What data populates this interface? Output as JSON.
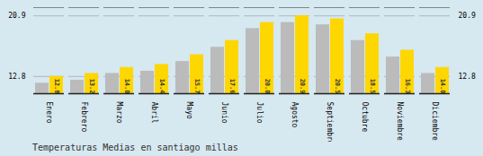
{
  "chart_data": {
    "type": "bar",
    "title": "Temperaturas Medias en santiago millas",
    "categories": [
      "Enero",
      "Febrero",
      "Marzo",
      "Abril",
      "Mayo",
      "Junio",
      "Julio",
      "Agosto",
      "Septiembre",
      "Octubre",
      "Noviembre",
      "Diciembre"
    ],
    "series": [
      {
        "color": "#BBBBBB",
        "values": [
          11.9,
          12.3,
          13.2,
          13.5,
          14.8,
          16.7,
          19.2,
          20.0,
          19.7,
          17.6,
          15.4,
          13.2
        ]
      },
      {
        "color": "#FFD700",
        "values": [
          12.8,
          13.2,
          14.0,
          14.4,
          15.7,
          17.6,
          20.0,
          20.9,
          20.5,
          18.5,
          16.3,
          14.0
        ],
        "value_labels": [
          "12.8",
          "13.2",
          "14.0",
          "14.4",
          "15.7",
          "17.6",
          "20.0",
          "20.9",
          "20.5",
          "18.5",
          "16.3",
          "14.0"
        ],
        "data_labels": true
      }
    ],
    "ylim": [
      10.5,
      22.0
    ],
    "yticks": [
      12.8,
      20.9
    ],
    "grid": true
  }
}
